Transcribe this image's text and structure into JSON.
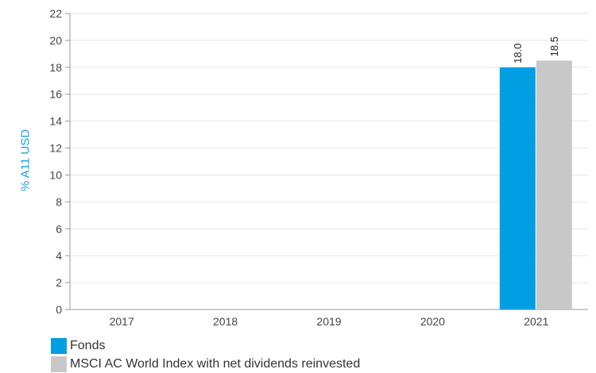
{
  "chart_data": {
    "type": "bar",
    "title": "",
    "xlabel": "",
    "ylabel": "% A11 USD",
    "categories": [
      "2017",
      "2018",
      "2019",
      "2020",
      "2021"
    ],
    "series": [
      {
        "name": "Fonds",
        "color": "#009fe3",
        "values": [
          null,
          null,
          null,
          null,
          18.0
        ],
        "labels": [
          "",
          "",
          "",
          "",
          "18.0"
        ]
      },
      {
        "name": "MSCI AC World Index with net dividends reinvested",
        "color": "#c8c8c8",
        "values": [
          null,
          null,
          null,
          null,
          18.5
        ],
        "labels": [
          "",
          "",
          "",
          "",
          "18.5"
        ]
      }
    ],
    "yticks": [
      "0",
      "2",
      "4",
      "6",
      "8",
      "10",
      "12",
      "14",
      "16",
      "18",
      "20",
      "22"
    ],
    "ylim": [
      0,
      22
    ],
    "grid": true,
    "legend": "bottom-left"
  }
}
